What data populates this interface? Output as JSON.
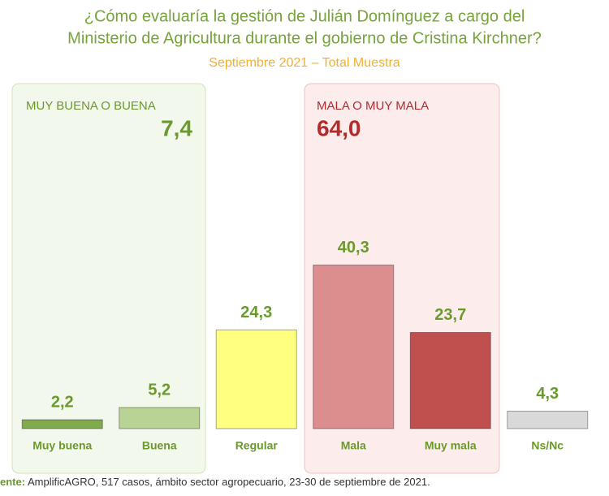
{
  "chart_data": {
    "type": "bar",
    "title": [
      "¿Cómo evaluaría la gestión de Julián Domínguez a cargo del",
      "Ministerio de Agricultura durante el gobierno de Cristina Kirchner?"
    ],
    "subtitle": "Septiembre 2021 – Total Muestra",
    "categories": [
      "Muy buena",
      "Buena",
      "Regular",
      "Mala",
      "Muy mala",
      "Ns/Nc"
    ],
    "values": [
      2.2,
      5.2,
      24.3,
      40.3,
      23.7,
      4.3
    ],
    "value_labels": [
      "2,2",
      "5,2",
      "24,3",
      "40,3",
      "23,7",
      "4,3"
    ],
    "colors": [
      "#7fab4a",
      "#b8d393",
      "#ffff80",
      "#dc8e8e",
      "#c0504d",
      "#d9d9d9"
    ],
    "groups": [
      {
        "label": "MUY BUENA O BUENA",
        "value": 7.4,
        "value_label": "7,4",
        "color": "#6a9a2c"
      },
      {
        "label": "MALA O MUY MALA",
        "value": 64.0,
        "value_label": "64,0",
        "color": "#b22c2c"
      }
    ],
    "source_label": "ente:",
    "source": "AmplificAGRO, 517 casos, ámbito sector agropecuario, 23-30 de septiembre de 2021."
  }
}
